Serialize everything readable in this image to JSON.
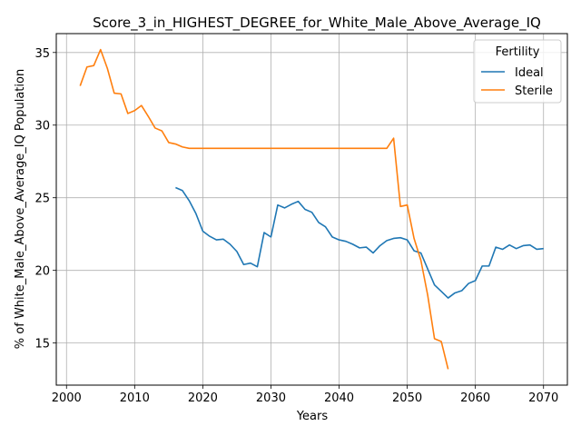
{
  "chart_data": {
    "type": "line",
    "title": "Score_3_in_HIGHEST_DEGREE_for_White_Male_Above_Average_IQ",
    "xlabel": "Years",
    "ylabel": "% of White_Male_Above_Average_IQ Population",
    "xlim": [
      1998.5,
      2073.5
    ],
    "ylim": [
      12.1,
      36.3
    ],
    "xticks": [
      2000,
      2010,
      2020,
      2030,
      2040,
      2050,
      2060,
      2070
    ],
    "yticks": [
      15,
      20,
      25,
      30,
      35
    ],
    "grid": true,
    "legend": {
      "title": "Fertility",
      "placement": "top-right"
    },
    "series": [
      {
        "name": "Ideal",
        "color": "#1f77b4",
        "x": [
          2016,
          2017,
          2018,
          2019,
          2020,
          2021,
          2022,
          2023,
          2024,
          2025,
          2026,
          2027,
          2028,
          2029,
          2030,
          2031,
          2032,
          2033,
          2034,
          2035,
          2036,
          2037,
          2038,
          2039,
          2040,
          2041,
          2042,
          2043,
          2044,
          2045,
          2046,
          2047,
          2048,
          2049,
          2050,
          2051,
          2052,
          2053,
          2054,
          2055,
          2056,
          2057,
          2058,
          2059,
          2060,
          2061,
          2062,
          2063,
          2064,
          2065,
          2066,
          2067,
          2068,
          2069,
          2070
        ],
        "y": [
          25.7,
          25.5,
          24.8,
          23.9,
          22.7,
          22.35,
          22.1,
          22.15,
          21.8,
          21.3,
          20.4,
          20.5,
          20.25,
          22.6,
          22.3,
          24.5,
          24.3,
          24.55,
          24.75,
          24.2,
          24.0,
          23.3,
          23.0,
          22.3,
          22.1,
          22.0,
          21.8,
          21.55,
          21.6,
          21.2,
          21.7,
          22.05,
          22.2,
          22.25,
          22.1,
          21.35,
          21.2,
          20.1,
          19.0,
          18.55,
          18.1,
          18.45,
          18.6,
          19.1,
          19.3,
          20.3,
          20.3,
          21.6,
          21.45,
          21.75,
          21.5,
          21.7,
          21.75,
          21.45,
          21.5
        ]
      },
      {
        "name": "Sterile",
        "color": "#ff7f0e",
        "x": [
          2002,
          2003,
          2004,
          2005,
          2006,
          2007,
          2008,
          2009,
          2010,
          2011,
          2012,
          2013,
          2014,
          2015,
          2016,
          2017,
          2018,
          2019,
          2020,
          2021,
          2022,
          2023,
          2024,
          2025,
          2026,
          2027,
          2028,
          2029,
          2030,
          2031,
          2032,
          2033,
          2034,
          2035,
          2036,
          2037,
          2038,
          2039,
          2040,
          2041,
          2042,
          2043,
          2044,
          2045,
          2046,
          2047,
          2048,
          2049,
          2050,
          2051,
          2052,
          2053,
          2054,
          2055,
          2056
        ],
        "y": [
          32.7,
          34.0,
          34.1,
          35.2,
          33.9,
          32.2,
          32.15,
          30.8,
          31.0,
          31.35,
          30.6,
          29.8,
          29.6,
          28.8,
          28.7,
          28.5,
          28.4,
          28.4,
          28.4,
          28.4,
          28.4,
          28.4,
          28.4,
          28.4,
          28.4,
          28.4,
          28.4,
          28.4,
          28.4,
          28.4,
          28.4,
          28.4,
          28.4,
          28.4,
          28.4,
          28.4,
          28.4,
          28.4,
          28.4,
          28.4,
          28.4,
          28.4,
          28.4,
          28.4,
          28.4,
          28.4,
          29.1,
          24.4,
          24.5,
          22.2,
          20.7,
          18.3,
          15.3,
          15.1,
          13.2
        ]
      }
    ]
  }
}
